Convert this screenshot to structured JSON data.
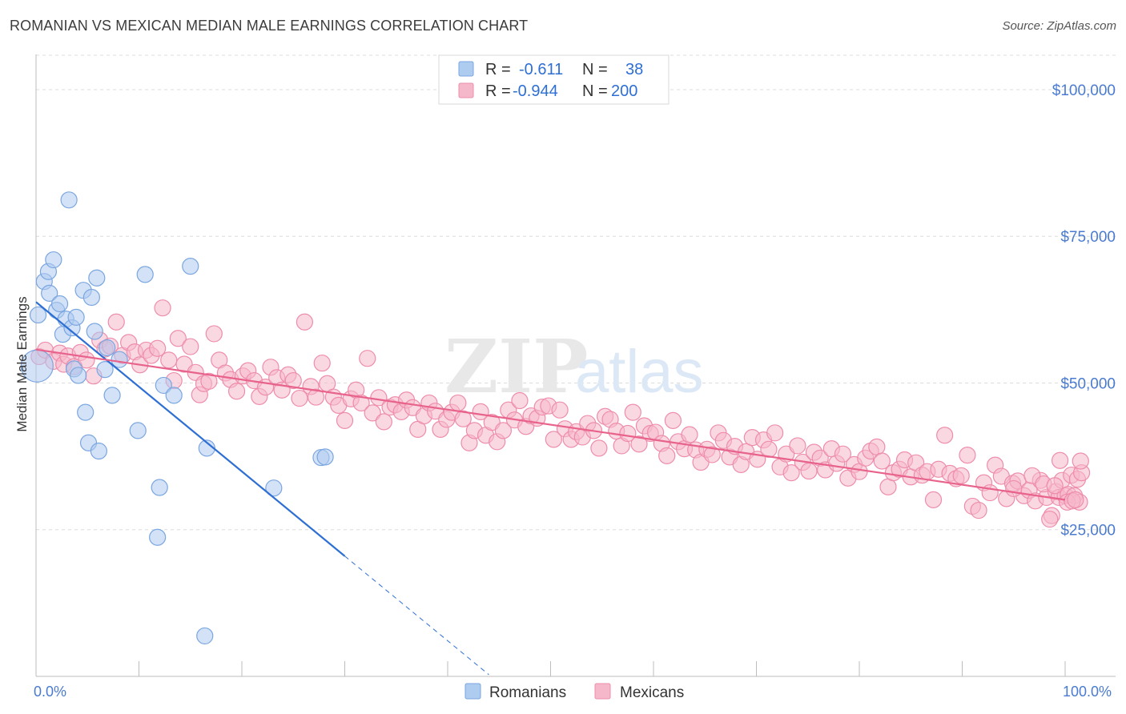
{
  "header": {
    "title": "ROMANIAN VS MEXICAN MEDIAN MALE EARNINGS CORRELATION CHART",
    "source": "Source: ZipAtlas.com"
  },
  "watermark": {
    "zip": "ZIP",
    "atlas": "atlas"
  },
  "colors": {
    "romanian_fill": "#aecbf0",
    "romanian_stroke": "#7aa6e0",
    "romanian_line": "#2e6fd4",
    "mexican_fill": "#f5b8cb",
    "mexican_stroke": "#ee8cab",
    "mexican_line": "#e8638c",
    "tick_text": "#4a7bd0",
    "grid": "#dcdcdc"
  },
  "legend": {
    "r_label": "R =",
    "n_label": "N =",
    "rows": [
      {
        "r": "-0.611",
        "n": "38"
      },
      {
        "r": "-0.944",
        "n": "200"
      }
    ]
  },
  "chart_data": {
    "type": "scatter",
    "title": "ROMANIAN VS MEXICAN MEDIAN MALE EARNINGS CORRELATION CHART",
    "xlabel": "",
    "ylabel": "Median Male Earnings",
    "xlim": [
      0,
      100
    ],
    "ylim": [
      0,
      106000
    ],
    "x_tick_labels": [
      "0.0%",
      "100.0%"
    ],
    "y_ticks": [
      25000,
      50000,
      75000,
      100000
    ],
    "y_tick_labels": [
      "$25,000",
      "$50,000",
      "$75,000",
      "$100,000"
    ],
    "grid": true,
    "legend_position": "top-center",
    "series": [
      {
        "name": "Romanians",
        "r": -0.611,
        "n": 38,
        "trend": {
          "x0": 0,
          "y0": 63800,
          "x1": 30,
          "y1": 20500,
          "dashed_to_x": 44
        },
        "points": [
          [
            0.1,
            52900
          ],
          [
            0.2,
            61600
          ],
          [
            0.8,
            67300
          ],
          [
            1.2,
            69000
          ],
          [
            1.3,
            65300
          ],
          [
            1.7,
            71000
          ],
          [
            2.0,
            62400
          ],
          [
            2.3,
            63500
          ],
          [
            2.6,
            58300
          ],
          [
            2.9,
            60900
          ],
          [
            3.2,
            81200
          ],
          [
            3.5,
            59400
          ],
          [
            3.7,
            52400
          ],
          [
            3.9,
            61200
          ],
          [
            4.1,
            51300
          ],
          [
            4.6,
            65800
          ],
          [
            4.8,
            45000
          ],
          [
            5.1,
            39800
          ],
          [
            5.4,
            64600
          ],
          [
            5.7,
            58800
          ],
          [
            5.9,
            67900
          ],
          [
            6.1,
            38400
          ],
          [
            6.7,
            52300
          ],
          [
            6.9,
            56000
          ],
          [
            7.4,
            47900
          ],
          [
            8.1,
            54000
          ],
          [
            9.9,
            41900
          ],
          [
            10.6,
            68500
          ],
          [
            11.8,
            23700
          ],
          [
            12.0,
            32200
          ],
          [
            12.4,
            49600
          ],
          [
            13.4,
            47900
          ],
          [
            15.0,
            69900
          ],
          [
            16.4,
            6900
          ],
          [
            16.6,
            38900
          ],
          [
            23.1,
            32100
          ],
          [
            27.7,
            37300
          ],
          [
            28.1,
            37400
          ]
        ]
      },
      {
        "name": "Mexicans",
        "r": -0.944,
        "n": 200,
        "trend": {
          "x0": 0,
          "y0": 55700,
          "x1": 100,
          "y1": 30100
        },
        "points": [
          [
            0.3,
            54500
          ],
          [
            0.9,
            55600
          ],
          [
            1.7,
            53700
          ],
          [
            2.3,
            55100
          ],
          [
            2.7,
            53200
          ],
          [
            3.1,
            54600
          ],
          [
            3.7,
            52800
          ],
          [
            4.3,
            55200
          ],
          [
            4.9,
            53900
          ],
          [
            5.6,
            51200
          ],
          [
            6.2,
            57300
          ],
          [
            6.7,
            55800
          ],
          [
            7.2,
            56300
          ],
          [
            7.8,
            60400
          ],
          [
            8.4,
            54700
          ],
          [
            9.0,
            56900
          ],
          [
            9.6,
            55300
          ],
          [
            10.1,
            53100
          ],
          [
            10.7,
            55600
          ],
          [
            11.2,
            54700
          ],
          [
            11.8,
            55900
          ],
          [
            12.3,
            62800
          ],
          [
            12.9,
            53900
          ],
          [
            13.4,
            50400
          ],
          [
            13.8,
            57600
          ],
          [
            14.4,
            53200
          ],
          [
            15.0,
            56200
          ],
          [
            15.5,
            51800
          ],
          [
            15.9,
            48000
          ],
          [
            16.3,
            49900
          ],
          [
            16.8,
            50300
          ],
          [
            17.3,
            58400
          ],
          [
            17.8,
            53900
          ],
          [
            18.4,
            51700
          ],
          [
            18.9,
            50600
          ],
          [
            19.5,
            48600
          ],
          [
            20.1,
            51200
          ],
          [
            20.6,
            52100
          ],
          [
            21.2,
            50400
          ],
          [
            21.7,
            47700
          ],
          [
            22.3,
            49300
          ],
          [
            22.8,
            52700
          ],
          [
            23.4,
            50900
          ],
          [
            23.9,
            48800
          ],
          [
            24.5,
            51400
          ],
          [
            25.0,
            50400
          ],
          [
            25.6,
            47400
          ],
          [
            26.1,
            60400
          ],
          [
            26.7,
            49400
          ],
          [
            27.2,
            47600
          ],
          [
            27.8,
            53400
          ],
          [
            28.3,
            49900
          ],
          [
            28.9,
            47600
          ],
          [
            29.4,
            46200
          ],
          [
            30.0,
            43600
          ],
          [
            30.6,
            47300
          ],
          [
            31.1,
            48800
          ],
          [
            31.6,
            46600
          ],
          [
            32.2,
            54200
          ],
          [
            32.7,
            44900
          ],
          [
            33.3,
            47500
          ],
          [
            33.8,
            43400
          ],
          [
            34.4,
            45900
          ],
          [
            34.9,
            46300
          ],
          [
            35.5,
            45100
          ],
          [
            36.0,
            47100
          ],
          [
            36.6,
            45800
          ],
          [
            37.1,
            42100
          ],
          [
            37.7,
            44400
          ],
          [
            38.2,
            46600
          ],
          [
            38.8,
            45200
          ],
          [
            39.3,
            42100
          ],
          [
            39.9,
            43800
          ],
          [
            40.4,
            45000
          ],
          [
            41.0,
            46600
          ],
          [
            41.5,
            43900
          ],
          [
            42.1,
            39800
          ],
          [
            42.6,
            41900
          ],
          [
            43.2,
            45100
          ],
          [
            43.7,
            41100
          ],
          [
            44.3,
            43300
          ],
          [
            44.8,
            40000
          ],
          [
            45.4,
            41900
          ],
          [
            45.9,
            45400
          ],
          [
            46.5,
            43700
          ],
          [
            47.0,
            47000
          ],
          [
            47.6,
            42600
          ],
          [
            48.1,
            44400
          ],
          [
            48.7,
            44000
          ],
          [
            49.2,
            45900
          ],
          [
            49.8,
            46100
          ],
          [
            50.3,
            40400
          ],
          [
            50.9,
            45400
          ],
          [
            51.4,
            42200
          ],
          [
            52.0,
            40400
          ],
          [
            52.5,
            41700
          ],
          [
            53.1,
            40800
          ],
          [
            53.6,
            43100
          ],
          [
            54.2,
            41900
          ],
          [
            54.7,
            38900
          ],
          [
            55.3,
            44300
          ],
          [
            55.8,
            43800
          ],
          [
            56.4,
            41800
          ],
          [
            56.9,
            39300
          ],
          [
            57.5,
            41400
          ],
          [
            58.0,
            45000
          ],
          [
            58.6,
            39600
          ],
          [
            59.1,
            42700
          ],
          [
            59.7,
            41400
          ],
          [
            60.2,
            41600
          ],
          [
            60.8,
            39700
          ],
          [
            61.3,
            37600
          ],
          [
            61.9,
            43600
          ],
          [
            62.4,
            40000
          ],
          [
            63.0,
            38800
          ],
          [
            63.5,
            41200
          ],
          [
            64.1,
            38600
          ],
          [
            64.6,
            36500
          ],
          [
            65.2,
            38700
          ],
          [
            65.7,
            37800
          ],
          [
            66.3,
            41500
          ],
          [
            66.8,
            40200
          ],
          [
            67.4,
            37400
          ],
          [
            67.9,
            39200
          ],
          [
            68.5,
            36100
          ],
          [
            69.0,
            38300
          ],
          [
            69.6,
            40700
          ],
          [
            70.1,
            37000
          ],
          [
            70.7,
            40300
          ],
          [
            71.2,
            38700
          ],
          [
            71.8,
            41500
          ],
          [
            72.3,
            35700
          ],
          [
            72.9,
            37900
          ],
          [
            73.4,
            34700
          ],
          [
            74.0,
            39300
          ],
          [
            74.5,
            36500
          ],
          [
            75.1,
            35000
          ],
          [
            75.6,
            38200
          ],
          [
            76.2,
            37200
          ],
          [
            76.7,
            35200
          ],
          [
            77.3,
            38800
          ],
          [
            77.8,
            36300
          ],
          [
            78.4,
            37900
          ],
          [
            78.9,
            33800
          ],
          [
            79.5,
            36100
          ],
          [
            80.0,
            34900
          ],
          [
            80.6,
            37200
          ],
          [
            81.1,
            38400
          ],
          [
            81.7,
            39100
          ],
          [
            82.2,
            36700
          ],
          [
            82.8,
            32300
          ],
          [
            83.3,
            34700
          ],
          [
            83.9,
            35300
          ],
          [
            84.4,
            36900
          ],
          [
            85.0,
            34000
          ],
          [
            85.5,
            36400
          ],
          [
            86.1,
            34300
          ],
          [
            86.6,
            34900
          ],
          [
            87.2,
            30100
          ],
          [
            87.7,
            35300
          ],
          [
            88.3,
            41100
          ],
          [
            88.8,
            34600
          ],
          [
            89.4,
            33700
          ],
          [
            89.9,
            34200
          ],
          [
            90.5,
            37700
          ],
          [
            91.0,
            29000
          ],
          [
            91.6,
            28300
          ],
          [
            92.1,
            33000
          ],
          [
            92.7,
            31300
          ],
          [
            93.2,
            36000
          ],
          [
            93.8,
            34100
          ],
          [
            94.3,
            30300
          ],
          [
            94.9,
            32900
          ],
          [
            95.4,
            33300
          ],
          [
            96.0,
            30800
          ],
          [
            96.5,
            31700
          ],
          [
            97.1,
            29900
          ],
          [
            97.6,
            33400
          ],
          [
            98.2,
            30500
          ],
          [
            98.7,
            27400
          ],
          [
            99.1,
            31500
          ],
          [
            99.4,
            30500
          ],
          [
            99.7,
            33400
          ],
          [
            100.0,
            30800
          ],
          [
            100.3,
            31000
          ],
          [
            100.6,
            34300
          ],
          [
            100.9,
            30800
          ],
          [
            101.2,
            33600
          ],
          [
            101.4,
            29700
          ],
          [
            101.6,
            34700
          ],
          [
            95.0,
            32000
          ],
          [
            96.8,
            34200
          ],
          [
            97.9,
            32800
          ],
          [
            98.5,
            26800
          ],
          [
            99.0,
            32500
          ],
          [
            99.5,
            36800
          ],
          [
            100.2,
            29700
          ],
          [
            100.7,
            29900
          ],
          [
            101.0,
            30100
          ],
          [
            101.5,
            36700
          ]
        ]
      }
    ]
  }
}
